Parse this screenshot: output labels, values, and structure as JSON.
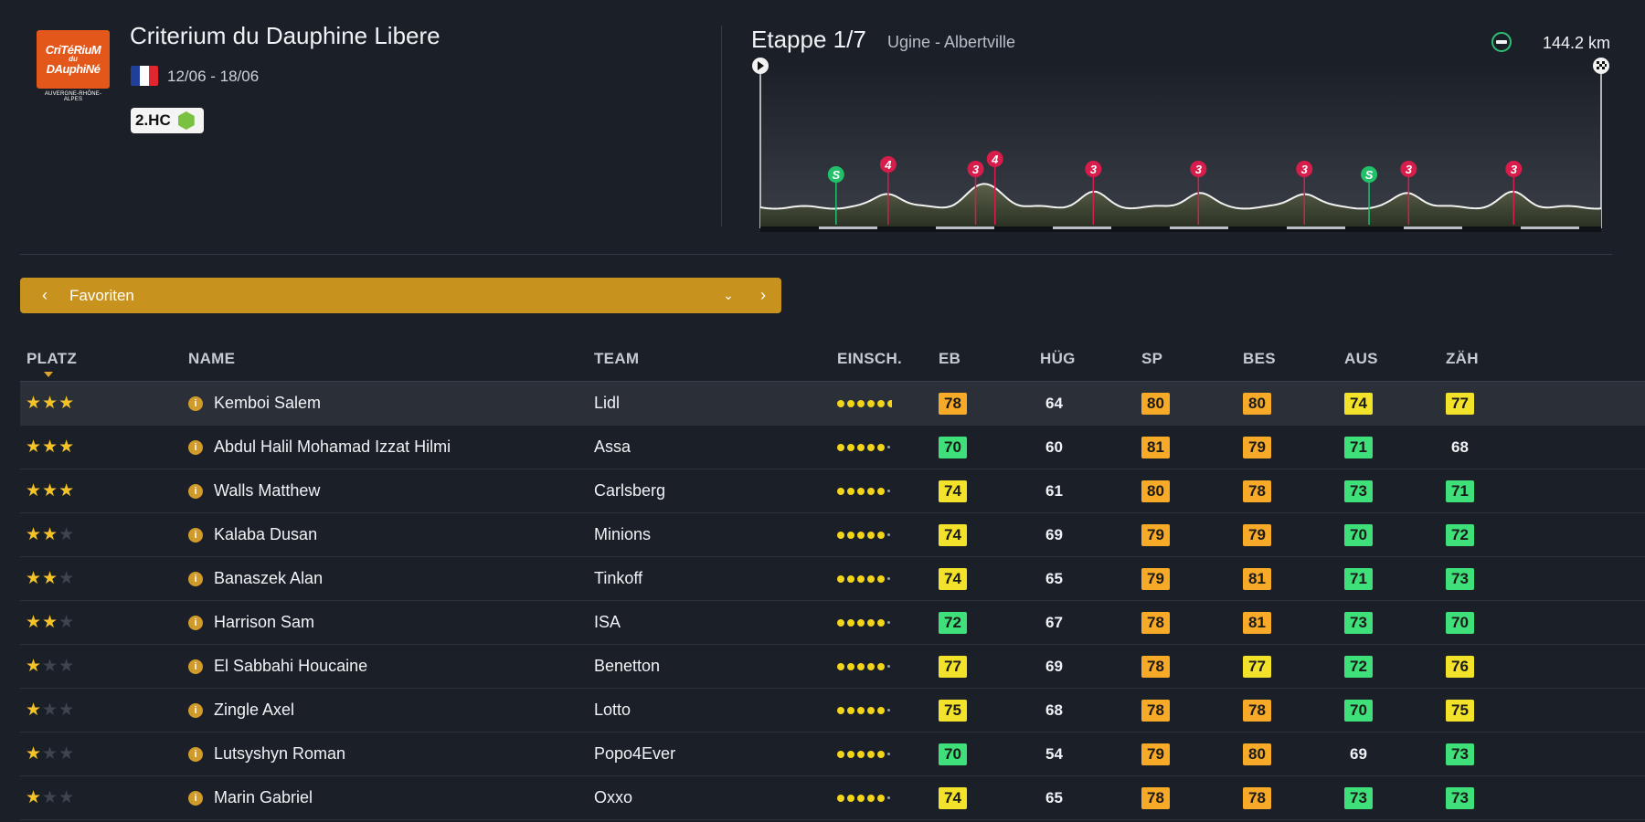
{
  "race": {
    "logo_line1": "CriTéRiuM",
    "logo_line2": "du",
    "logo_line3": "DAuphiNé",
    "logo_sub": "AUVERGNE-RHÔNE-ALPES",
    "title": "Criterium du Dauphine Libere",
    "dates": "12/06 - 18/06",
    "category": "2.HC",
    "flag_colors": [
      "#1f3f9a",
      "#ffffff",
      "#e0262f"
    ]
  },
  "stage": {
    "title": "Etappe 1/7",
    "route": "Ugine - Albertville",
    "distance": "144.2 km",
    "markers": [
      {
        "type": "sprint",
        "label": "S",
        "pos": 0.09
      },
      {
        "type": "climb",
        "label": "4",
        "pos": 0.152
      },
      {
        "type": "climb",
        "label": "3",
        "pos": 0.256
      },
      {
        "type": "climb",
        "label": "4",
        "pos": 0.279
      },
      {
        "type": "climb",
        "label": "3",
        "pos": 0.396
      },
      {
        "type": "climb",
        "label": "3",
        "pos": 0.521
      },
      {
        "type": "climb",
        "label": "3",
        "pos": 0.647
      },
      {
        "type": "sprint",
        "label": "S",
        "pos": 0.724
      },
      {
        "type": "climb",
        "label": "3",
        "pos": 0.771
      },
      {
        "type": "climb",
        "label": "3",
        "pos": 0.896
      }
    ],
    "colors": {
      "sprint": "#22c06b",
      "climb": "#d81c4b"
    }
  },
  "selector": {
    "label": "Favoriten",
    "prev_icon": "chevron-left-icon",
    "next_icon": "chevron-right-icon",
    "dropdown_icon": "chevron-down-icon"
  },
  "table": {
    "headers": {
      "rank": "PLATZ",
      "name": "NAME",
      "team": "TEAM",
      "einsch": "EINSCH.",
      "eb": "EB",
      "hug": "HÜG",
      "sp": "SP",
      "bes": "BES",
      "aus": "AUS",
      "zah": "ZÄH"
    },
    "rows": [
      {
        "stars": 3,
        "name": "Kemboi Salem",
        "team": "Lidl",
        "einsch": 5.5,
        "stats": [
          {
            "v": "78",
            "c": "orange"
          },
          {
            "v": "64",
            "c": "plain"
          },
          {
            "v": "80",
            "c": "orange"
          },
          {
            "v": "80",
            "c": "orange"
          },
          {
            "v": "74",
            "c": "yellow"
          },
          {
            "v": "77",
            "c": "yellow"
          }
        ]
      },
      {
        "stars": 3,
        "name": "Abdul Halil Mohamad Izzat Hilmi",
        "team": "Assa",
        "einsch": 5,
        "stats": [
          {
            "v": "70",
            "c": "green"
          },
          {
            "v": "60",
            "c": "plain"
          },
          {
            "v": "81",
            "c": "orange"
          },
          {
            "v": "79",
            "c": "orange"
          },
          {
            "v": "71",
            "c": "green"
          },
          {
            "v": "68",
            "c": "plain"
          }
        ]
      },
      {
        "stars": 3,
        "name": "Walls Matthew",
        "team": "Carlsberg",
        "einsch": 5,
        "stats": [
          {
            "v": "74",
            "c": "yellow"
          },
          {
            "v": "61",
            "c": "plain"
          },
          {
            "v": "80",
            "c": "orange"
          },
          {
            "v": "78",
            "c": "orange"
          },
          {
            "v": "73",
            "c": "green"
          },
          {
            "v": "71",
            "c": "green"
          }
        ]
      },
      {
        "stars": 2,
        "name": "Kalaba Dusan",
        "team": "Minions",
        "einsch": 5,
        "stats": [
          {
            "v": "74",
            "c": "yellow"
          },
          {
            "v": "69",
            "c": "plain"
          },
          {
            "v": "79",
            "c": "orange"
          },
          {
            "v": "79",
            "c": "orange"
          },
          {
            "v": "70",
            "c": "green"
          },
          {
            "v": "72",
            "c": "green"
          }
        ]
      },
      {
        "stars": 2,
        "name": "Banaszek Alan",
        "team": "Tinkoff",
        "einsch": 5,
        "stats": [
          {
            "v": "74",
            "c": "yellow"
          },
          {
            "v": "65",
            "c": "plain"
          },
          {
            "v": "79",
            "c": "orange"
          },
          {
            "v": "81",
            "c": "orange"
          },
          {
            "v": "71",
            "c": "green"
          },
          {
            "v": "73",
            "c": "green"
          }
        ]
      },
      {
        "stars": 2,
        "name": "Harrison Sam",
        "team": "ISA",
        "einsch": 5,
        "stats": [
          {
            "v": "72",
            "c": "green"
          },
          {
            "v": "67",
            "c": "plain"
          },
          {
            "v": "78",
            "c": "orange"
          },
          {
            "v": "81",
            "c": "orange"
          },
          {
            "v": "73",
            "c": "green"
          },
          {
            "v": "70",
            "c": "green"
          }
        ]
      },
      {
        "stars": 1,
        "name": "El Sabbahi Houcaine",
        "team": "Benetton",
        "einsch": 5,
        "stats": [
          {
            "v": "77",
            "c": "yellow"
          },
          {
            "v": "69",
            "c": "plain"
          },
          {
            "v": "78",
            "c": "orange"
          },
          {
            "v": "77",
            "c": "yellow"
          },
          {
            "v": "72",
            "c": "green"
          },
          {
            "v": "76",
            "c": "yellow"
          }
        ]
      },
      {
        "stars": 1,
        "name": "Zingle Axel",
        "team": "Lotto",
        "einsch": 5,
        "stats": [
          {
            "v": "75",
            "c": "yellow"
          },
          {
            "v": "68",
            "c": "plain"
          },
          {
            "v": "78",
            "c": "orange"
          },
          {
            "v": "78",
            "c": "orange"
          },
          {
            "v": "70",
            "c": "green"
          },
          {
            "v": "75",
            "c": "yellow"
          }
        ]
      },
      {
        "stars": 1,
        "name": "Lutsyshyn Roman",
        "team": "Popo4Ever",
        "einsch": 5,
        "stats": [
          {
            "v": "70",
            "c": "green"
          },
          {
            "v": "54",
            "c": "plain"
          },
          {
            "v": "79",
            "c": "orange"
          },
          {
            "v": "80",
            "c": "orange"
          },
          {
            "v": "69",
            "c": "plain"
          },
          {
            "v": "73",
            "c": "green"
          }
        ]
      },
      {
        "stars": 1,
        "name": "Marin Gabriel",
        "team": "Oxxo",
        "einsch": 5,
        "stats": [
          {
            "v": "74",
            "c": "yellow"
          },
          {
            "v": "65",
            "c": "plain"
          },
          {
            "v": "78",
            "c": "orange"
          },
          {
            "v": "78",
            "c": "orange"
          },
          {
            "v": "73",
            "c": "green"
          },
          {
            "v": "73",
            "c": "green"
          }
        ]
      }
    ]
  }
}
